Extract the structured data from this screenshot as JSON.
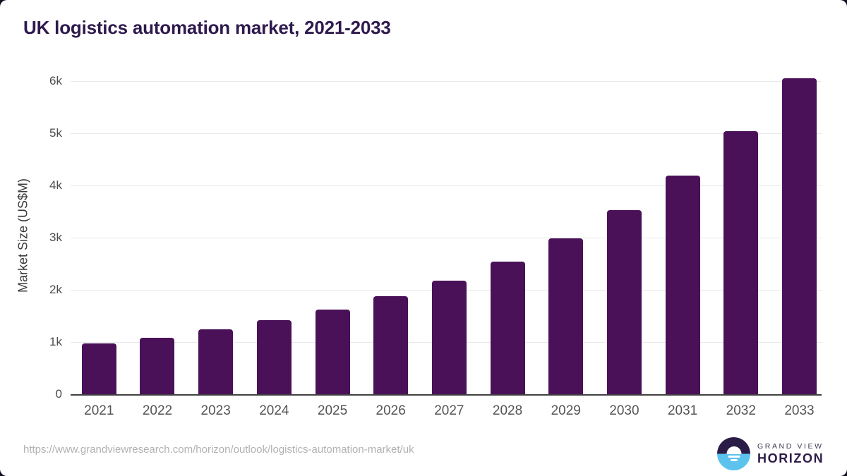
{
  "chart_data": {
    "type": "bar",
    "title": "UK logistics automation market, 2021-2033",
    "categories": [
      "2021",
      "2022",
      "2023",
      "2024",
      "2025",
      "2026",
      "2027",
      "2028",
      "2029",
      "2030",
      "2031",
      "2032",
      "2033"
    ],
    "values": [
      970,
      1085,
      1245,
      1425,
      1620,
      1880,
      2170,
      2535,
      2980,
      3525,
      4190,
      5035,
      6050
    ],
    "xlabel": "",
    "ylabel": "Market Size (US$M)",
    "ylim": [
      0,
      6200
    ],
    "yticks": [
      {
        "value": 0,
        "label": "0"
      },
      {
        "value": 1000,
        "label": "1k"
      },
      {
        "value": 2000,
        "label": "2k"
      },
      {
        "value": 3000,
        "label": "3k"
      },
      {
        "value": 4000,
        "label": "4k"
      },
      {
        "value": 5000,
        "label": "5k"
      },
      {
        "value": 6000,
        "label": "6k"
      }
    ],
    "grid": true,
    "legend": false
  },
  "footer": {
    "source_url": "https://www.grandviewresearch.com/horizon/outlook/logistics-automation-market/uk",
    "logo": {
      "top_text": "GRAND VIEW",
      "bottom_text": "HORIZON",
      "mark": "sun-over-water-icon"
    }
  },
  "colors": {
    "bar": "#4a1159",
    "title": "#2e1a4d",
    "grid": "#e8e8ea",
    "baseline": "#414141",
    "url": "#b1b1b3",
    "logo_dark": "#2b1b47",
    "logo_blue": "#5cc3ee",
    "card_background": "#ffffff",
    "outer_background": "#14101e"
  }
}
